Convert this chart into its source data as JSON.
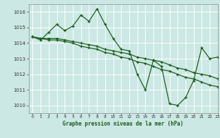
{
  "title": "Graphe pression niveau de la mer (hPa)",
  "bg_color": "#cce8e4",
  "grid_color": "#ffffff",
  "line_color": "#1a5c1a",
  "xlim": [
    -0.5,
    23
  ],
  "ylim": [
    1009.5,
    1016.5
  ],
  "yticks": [
    1010,
    1011,
    1012,
    1013,
    1014,
    1015,
    1016
  ],
  "xticks": [
    0,
    1,
    2,
    3,
    4,
    5,
    6,
    7,
    8,
    9,
    10,
    11,
    12,
    13,
    14,
    15,
    16,
    17,
    18,
    19,
    20,
    21,
    22,
    23
  ],
  "series1_x": [
    0,
    1,
    2,
    3,
    4,
    5,
    6,
    7,
    8,
    9,
    10,
    11,
    12,
    13,
    14,
    15,
    16,
    17,
    18,
    19,
    20,
    21,
    22,
    23
  ],
  "series1_y": [
    1014.4,
    1014.2,
    1014.7,
    1015.2,
    1014.8,
    1015.1,
    1015.8,
    1015.4,
    1016.2,
    1015.2,
    1014.3,
    1013.6,
    1013.5,
    1012.0,
    1011.0,
    1012.9,
    1012.5,
    1010.1,
    1010.0,
    1010.5,
    1011.6,
    1013.7,
    1013.0,
    1013.1
  ],
  "series2_x": [
    0,
    1,
    2,
    3,
    4,
    5,
    6,
    7,
    8,
    9,
    10,
    11,
    12,
    13,
    14,
    15,
    16,
    17,
    18,
    19,
    20,
    21,
    22,
    23
  ],
  "series2_y": [
    1014.4,
    1014.3,
    1014.2,
    1014.2,
    1014.1,
    1014.0,
    1013.8,
    1013.7,
    1013.6,
    1013.4,
    1013.3,
    1013.1,
    1013.0,
    1012.8,
    1012.7,
    1012.5,
    1012.3,
    1012.2,
    1012.0,
    1011.8,
    1011.7,
    1011.5,
    1011.3,
    1011.2
  ],
  "series3_x": [
    0,
    1,
    2,
    3,
    4,
    5,
    6,
    7,
    8,
    9,
    10,
    11,
    12,
    13,
    14,
    15,
    16,
    17,
    18,
    19,
    20,
    21,
    22,
    23
  ],
  "series3_y": [
    1014.4,
    1014.3,
    1014.3,
    1014.3,
    1014.2,
    1014.1,
    1014.0,
    1013.9,
    1013.8,
    1013.6,
    1013.5,
    1013.4,
    1013.3,
    1013.1,
    1013.0,
    1012.9,
    1012.8,
    1012.6,
    1012.4,
    1012.3,
    1012.1,
    1012.0,
    1011.9,
    1011.7
  ]
}
